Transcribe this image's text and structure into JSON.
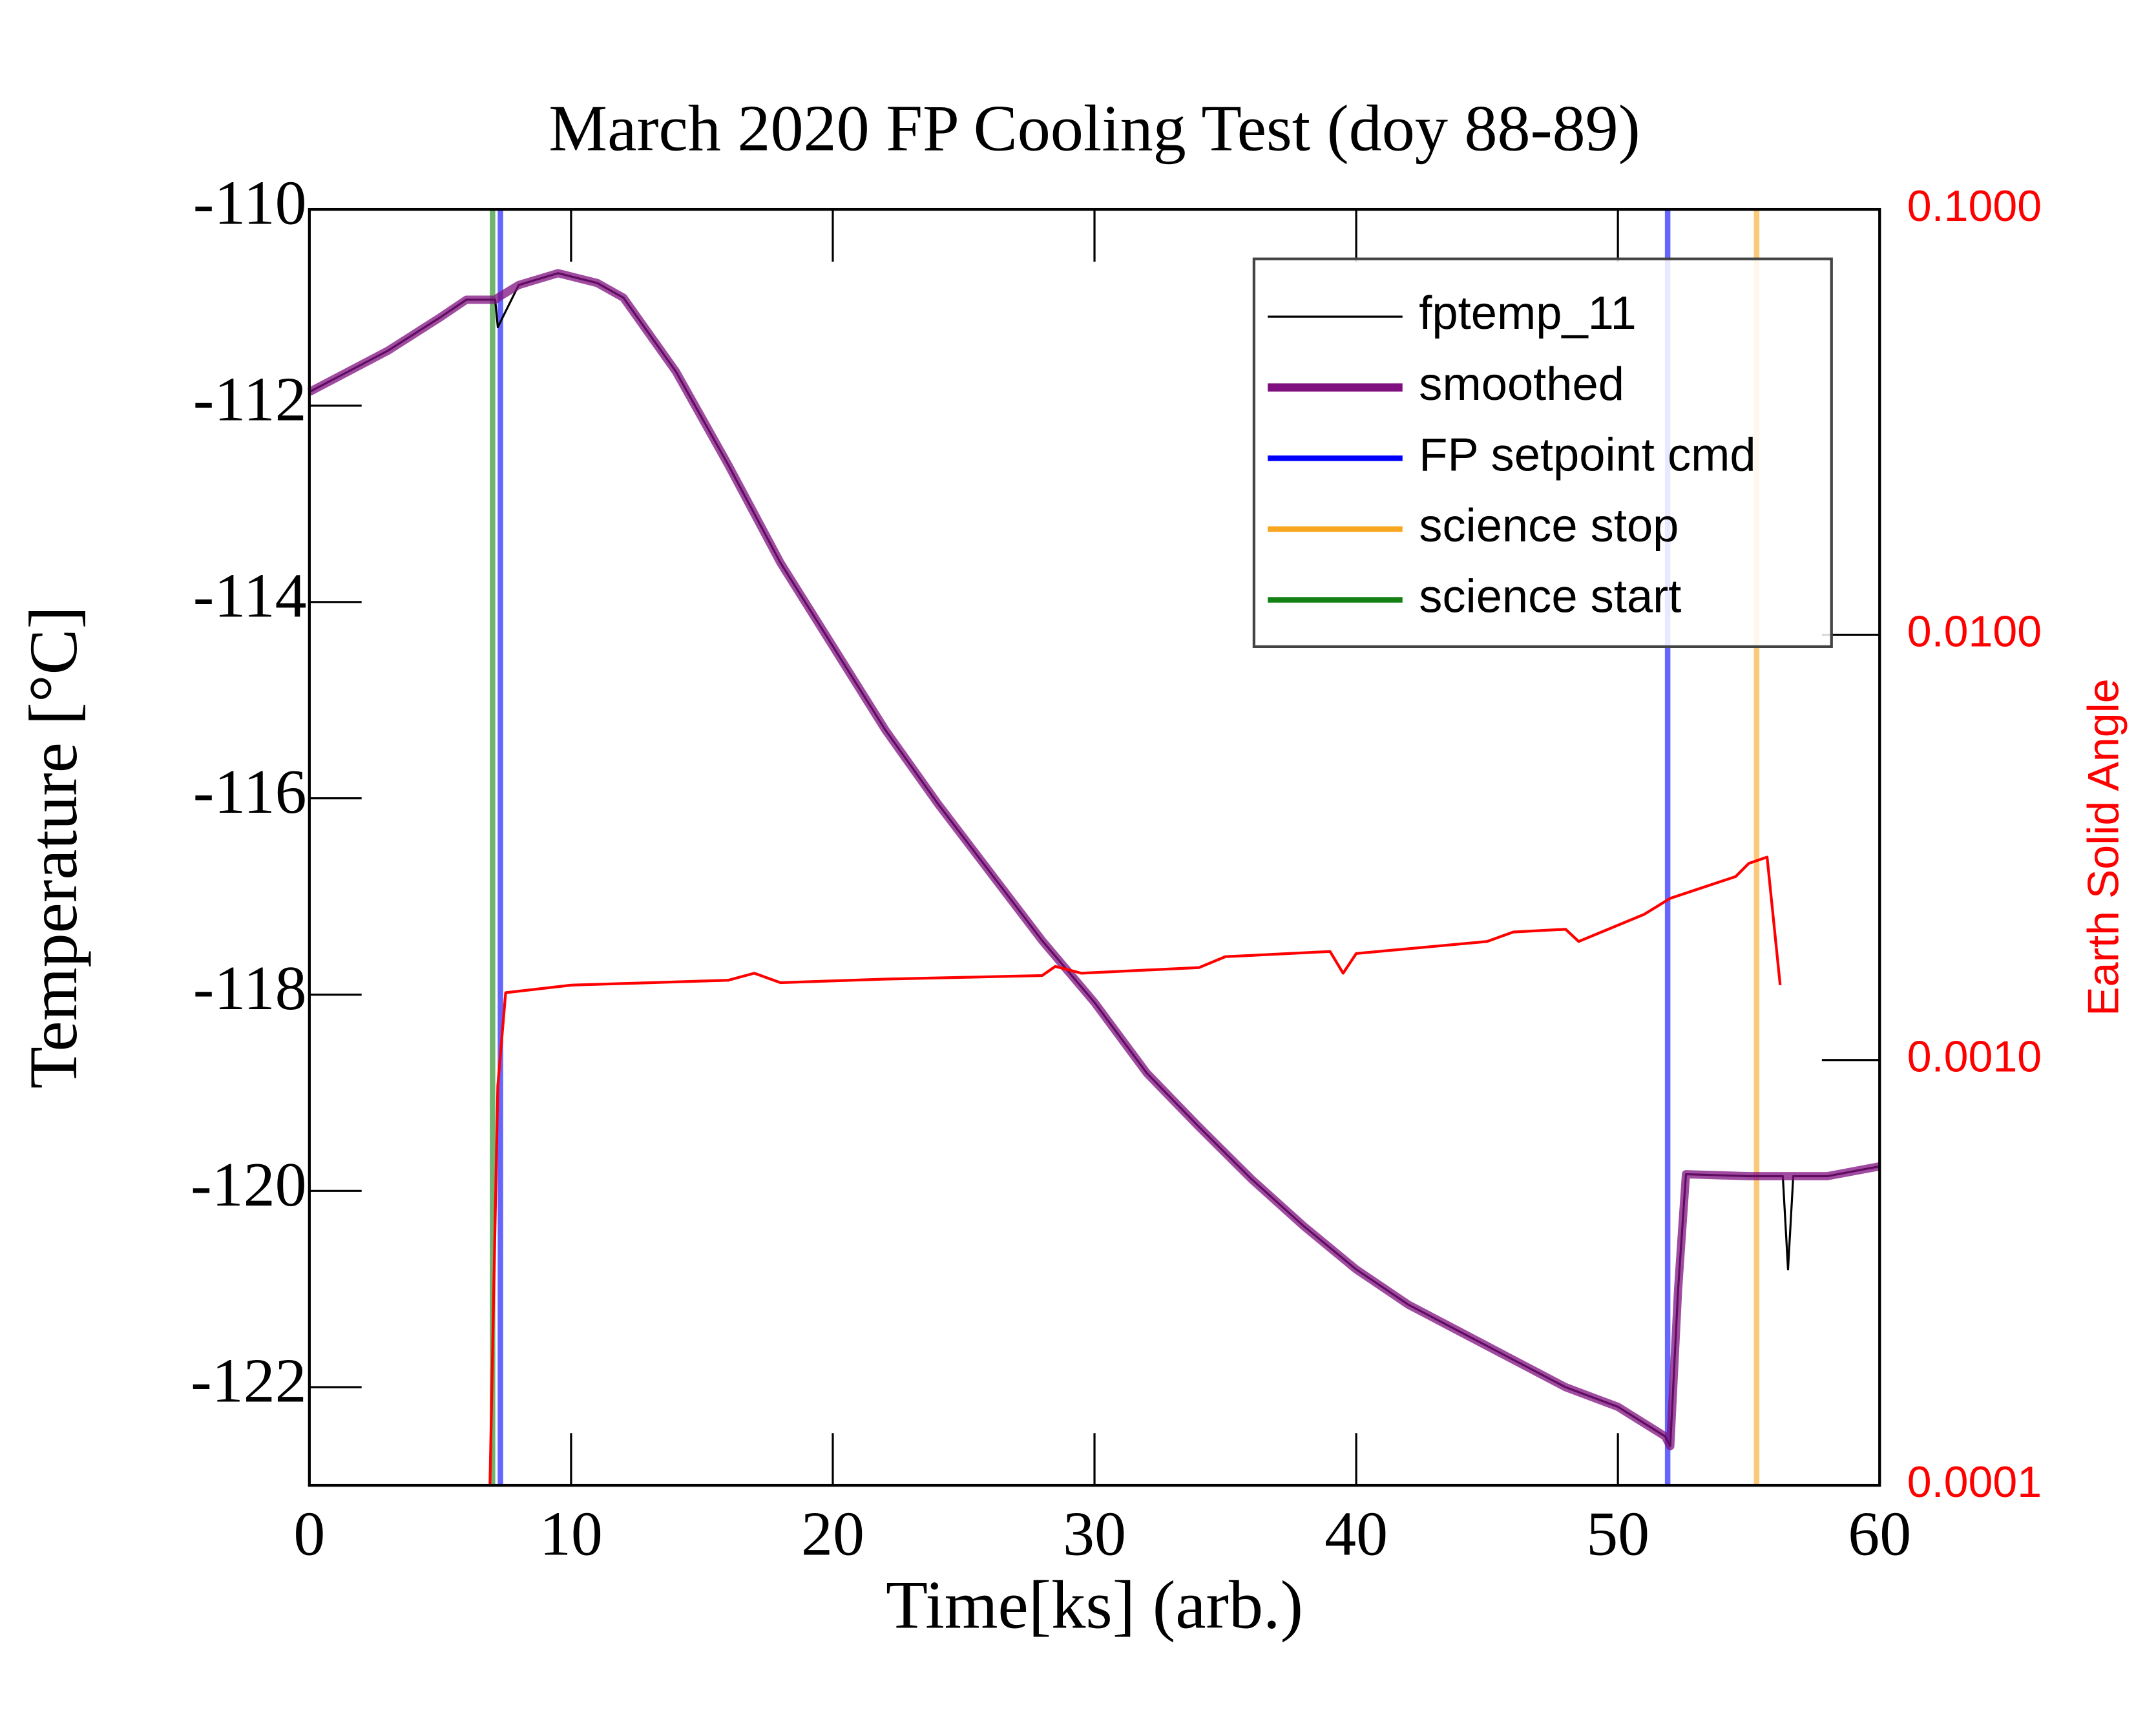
{
  "chart_data": {
    "type": "line",
    "title": "March 2020 FP Cooling Test (doy 88-89)",
    "xlabel": "Time[ks] (arb.)",
    "ylabel": "Temperature [°C]",
    "y2label": "Earth Solid Angle",
    "xlim": [
      0,
      60
    ],
    "xticks": [
      0,
      10,
      20,
      30,
      40,
      50,
      60
    ],
    "ylim": [
      -123,
      -110
    ],
    "yticks": [
      -110,
      -112,
      -114,
      -116,
      -118,
      -120,
      -122
    ],
    "y2lim": [
      0.0001,
      0.1
    ],
    "y2ticks": [
      {
        "value": 0.0001,
        "label": "0.0001"
      },
      {
        "value": 0.001,
        "label": "0.0010"
      },
      {
        "value": 0.01,
        "label": "0.0100"
      },
      {
        "value": 0.1,
        "label": "0.1000"
      }
    ],
    "y2log": true,
    "y2color": "#ff0000",
    "legend": "upper right",
    "x": [
      0,
      3,
      5,
      6,
      7.1,
      7.2,
      8,
      9.5,
      11,
      12,
      14,
      16,
      18,
      20,
      22,
      24,
      26,
      28,
      30,
      32,
      34,
      36,
      38,
      40,
      42,
      44,
      46,
      48,
      50,
      51.8,
      52,
      52.3,
      52.6,
      55,
      56.3,
      56.5,
      56.7,
      58,
      60
    ],
    "series": [
      {
        "name": "fptemp_11",
        "color": "#000000",
        "values": [
          -111.86,
          -111.44,
          -111.1,
          -110.92,
          -110.92,
          -111.2,
          -110.77,
          -110.65,
          -110.75,
          -110.9,
          -111.65,
          -112.6,
          -113.6,
          -114.45,
          -115.3,
          -116.05,
          -116.75,
          -117.45,
          -118.08,
          -118.8,
          -119.35,
          -119.88,
          -120.36,
          -120.8,
          -121.16,
          -121.44,
          -121.72,
          -122.0,
          -122.2,
          -122.5,
          -122.6,
          -121.0,
          -119.83,
          -119.85,
          -119.85,
          -120.8,
          -119.85,
          -119.85,
          -119.75
        ]
      },
      {
        "name": "smoothed",
        "color": "#7f0f7f",
        "values": [
          -111.86,
          -111.44,
          -111.1,
          -110.92,
          -110.92,
          -110.9,
          -110.77,
          -110.65,
          -110.75,
          -110.9,
          -111.65,
          -112.6,
          -113.6,
          -114.45,
          -115.3,
          -116.05,
          -116.75,
          -117.45,
          -118.08,
          -118.8,
          -119.35,
          -119.88,
          -120.36,
          -120.8,
          -121.16,
          -121.44,
          -121.72,
          -122.0,
          -122.2,
          -122.5,
          -122.6,
          -121.0,
          -119.83,
          -119.85,
          -119.85,
          -119.85,
          -119.85,
          -119.85,
          -119.75
        ]
      },
      {
        "name": "FP setpoint cmd",
        "color": "#0000ff",
        "x": [
          7.3,
          51.9
        ]
      },
      {
        "name": "science stop",
        "color": "#f8a51f",
        "x": [
          55.3
        ]
      },
      {
        "name": "science start",
        "color": "#138013",
        "x": [
          7.0
        ]
      },
      {
        "color": "#ff0000",
        "axis": "y2",
        "x": [
          6.9,
          7.2,
          7.5,
          10,
          16,
          17,
          18,
          22,
          28,
          28.5,
          29.5,
          34,
          35,
          39,
          39.5,
          40,
          45,
          46,
          48,
          48.5,
          51,
          52,
          54.5,
          55,
          55.7,
          56.2
        ],
        "values": [
          0.0001,
          0.00087,
          0.00144,
          0.0015,
          0.00154,
          0.0016,
          0.00152,
          0.00155,
          0.00158,
          0.00166,
          0.0016,
          0.00165,
          0.00175,
          0.0018,
          0.0016,
          0.00178,
          0.0019,
          0.002,
          0.00203,
          0.0019,
          0.0022,
          0.0024,
          0.0027,
          0.0029,
          0.003,
          0.0015
        ]
      }
    ]
  }
}
